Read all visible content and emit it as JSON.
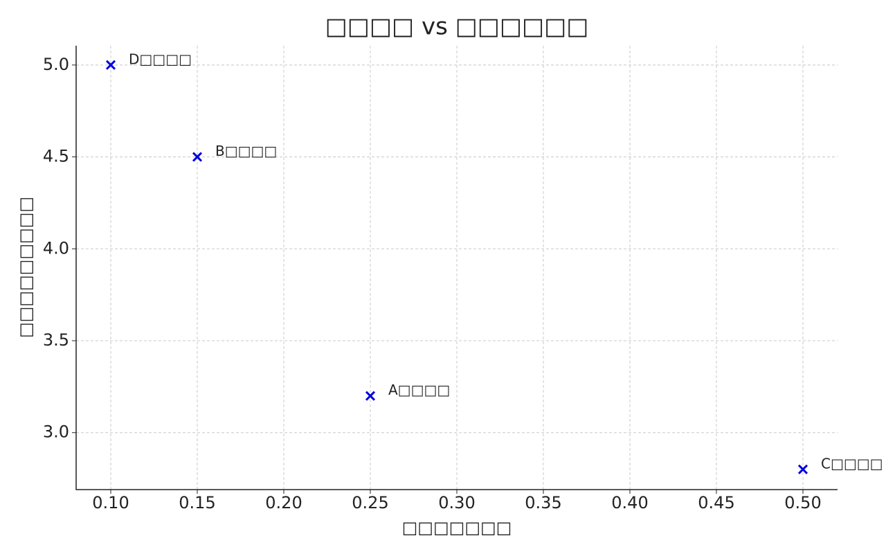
{
  "chart_data": {
    "type": "scatter",
    "title": "□□□□ vs □□□□□□",
    "x_label": "□□□□□□□",
    "y_label": "□□□□□□□□□",
    "series": [
      {
        "name": null,
        "color": "#0000dd",
        "x": [
          0.1,
          0.15,
          0.25,
          0.5
        ],
        "values": [
          5.0,
          4.5,
          3.2,
          2.8
        ],
        "point_labels": [
          "D□□□□",
          "B□□□□",
          "A□□□□",
          "C□□□□"
        ]
      }
    ],
    "xlim": [
      0.08,
      0.52
    ],
    "ylim": [
      2.69,
      5.105
    ],
    "xticks": [
      {
        "value": 0.1,
        "label": "0.10"
      },
      0.15,
      {
        "value": 0.2,
        "label": "0.20"
      },
      0.25,
      {
        "value": 0.3,
        "label": "0.30"
      },
      0.35,
      {
        "value": 0.4,
        "label": "0.40"
      },
      0.45,
      {
        "value": 0.5,
        "label": "0.50"
      }
    ],
    "yticks": [
      {
        "value": 3,
        "label": "3.0"
      },
      3.5,
      {
        "value": 4,
        "label": "4.0"
      },
      4.5,
      {
        "value": 5,
        "label": "5.0"
      }
    ],
    "grid": true
  }
}
